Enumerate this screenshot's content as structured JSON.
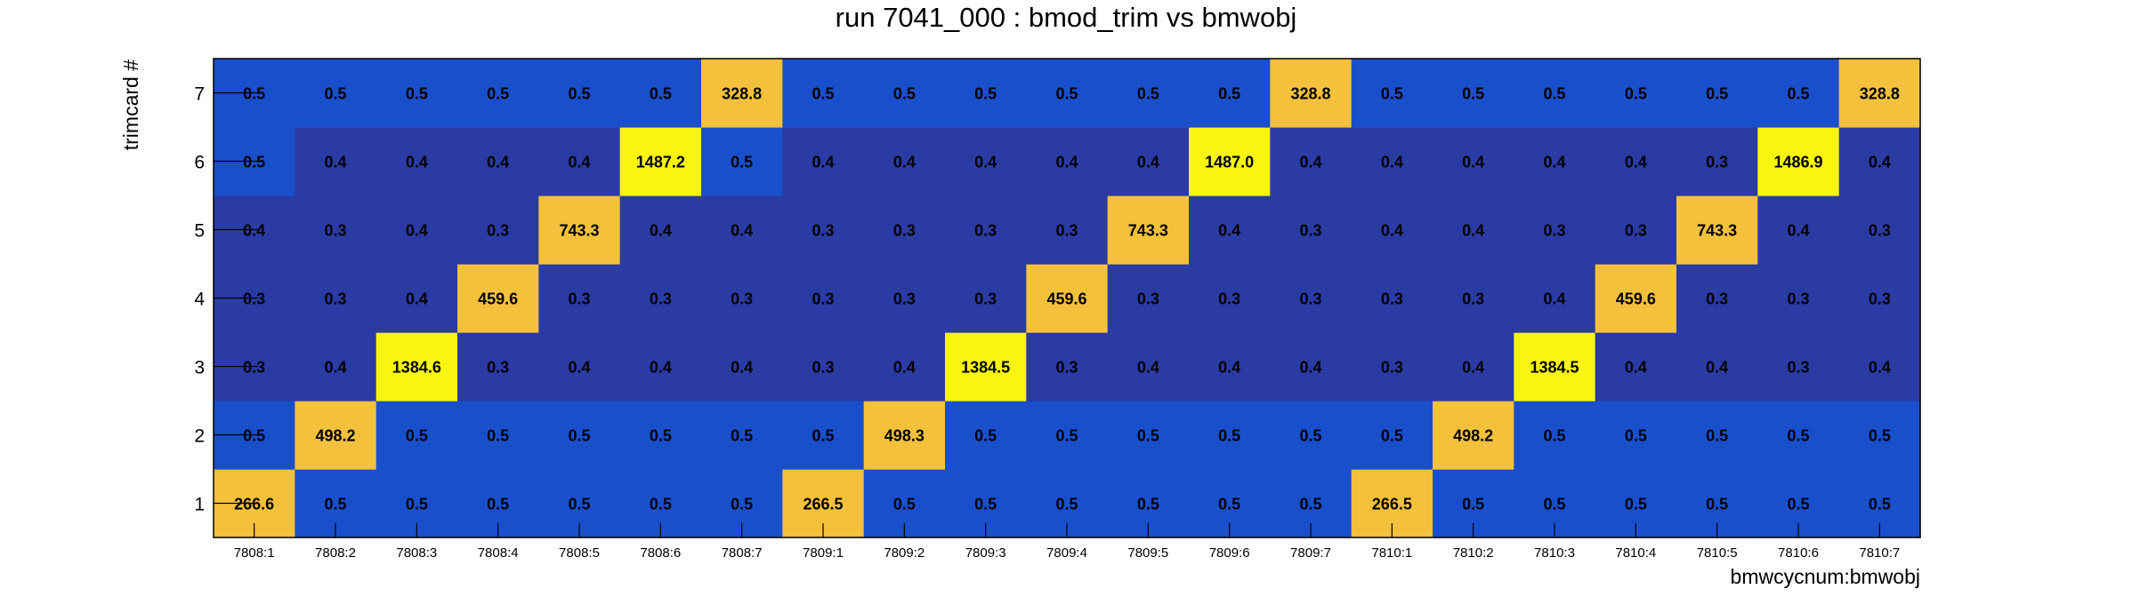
{
  "chart_data": {
    "type": "heatmap",
    "title": "run 7041_000 : bmod_trim vs bmwobj",
    "xlabel": "bmwcycnum:bmwobj",
    "ylabel": "trimcard #",
    "x_categories": [
      "7808:1",
      "7808:2",
      "7808:3",
      "7808:4",
      "7808:5",
      "7808:6",
      "7808:7",
      "7809:1",
      "7809:2",
      "7809:3",
      "7809:4",
      "7809:5",
      "7809:6",
      "7809:7",
      "7810:1",
      "7810:2",
      "7810:3",
      "7810:4",
      "7810:5",
      "7810:6",
      "7810:7"
    ],
    "y_categories": [
      "1",
      "2",
      "3",
      "4",
      "5",
      "6",
      "7"
    ],
    "values": {
      "1": [
        "266.6",
        "0.5",
        "0.5",
        "0.5",
        "0.5",
        "0.5",
        "0.5",
        "266.5",
        "0.5",
        "0.5",
        "0.5",
        "0.5",
        "0.5",
        "0.5",
        "266.5",
        "0.5",
        "0.5",
        "0.5",
        "0.5",
        "0.5",
        "0.5"
      ],
      "2": [
        "0.5",
        "498.2",
        "0.5",
        "0.5",
        "0.5",
        "0.5",
        "0.5",
        "0.5",
        "498.3",
        "0.5",
        "0.5",
        "0.5",
        "0.5",
        "0.5",
        "0.5",
        "498.2",
        "0.5",
        "0.5",
        "0.5",
        "0.5",
        "0.5"
      ],
      "3": [
        "0.3",
        "0.4",
        "1384.6",
        "0.3",
        "0.4",
        "0.4",
        "0.4",
        "0.3",
        "0.4",
        "1384.5",
        "0.3",
        "0.4",
        "0.4",
        "0.4",
        "0.3",
        "0.4",
        "1384.5",
        "0.4",
        "0.4",
        "0.3",
        "0.4"
      ],
      "4": [
        "0.3",
        "0.3",
        "0.4",
        "459.6",
        "0.3",
        "0.3",
        "0.3",
        "0.3",
        "0.3",
        "0.3",
        "459.6",
        "0.3",
        "0.3",
        "0.3",
        "0.3",
        "0.3",
        "0.4",
        "459.6",
        "0.3",
        "0.3",
        "0.3"
      ],
      "5": [
        "0.4",
        "0.3",
        "0.4",
        "0.3",
        "743.3",
        "0.4",
        "0.4",
        "0.3",
        "0.3",
        "0.3",
        "0.3",
        "743.3",
        "0.4",
        "0.3",
        "0.4",
        "0.4",
        "0.3",
        "0.3",
        "743.3",
        "0.4",
        "0.3"
      ],
      "6": [
        "0.5",
        "0.4",
        "0.4",
        "0.4",
        "0.4",
        "1487.2",
        "0.5",
        "0.4",
        "0.4",
        "0.4",
        "0.4",
        "0.4",
        "1487.0",
        "0.4",
        "0.4",
        "0.4",
        "0.4",
        "0.4",
        "0.3",
        "1486.9",
        "0.4"
      ],
      "7": [
        "0.5",
        "0.5",
        "0.5",
        "0.5",
        "0.5",
        "0.5",
        "328.8",
        "0.5",
        "0.5",
        "0.5",
        "0.5",
        "0.5",
        "0.5",
        "328.8",
        "0.5",
        "0.5",
        "0.5",
        "0.5",
        "0.5",
        "0.5",
        "328.8"
      ]
    },
    "colors": {
      "low_dark": "#2a3ba3",
      "low_blue": "#1a4fcc",
      "mid_gold": "#f4c13c",
      "high_yellow": "#f8f510"
    },
    "grid": false,
    "legend": "none"
  }
}
